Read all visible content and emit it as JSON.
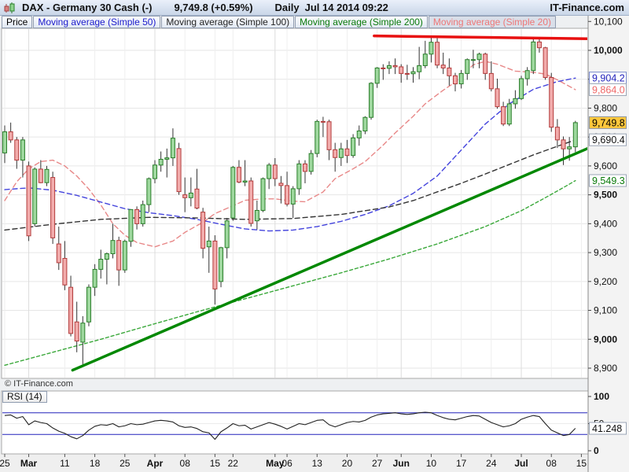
{
  "header": {
    "title": "DAX - Germany 30 Cash (-)",
    "last_price": "9,749.8 (+0.59%)",
    "timeframe": "Daily",
    "timestamp": "Jul 14 2014 09:22",
    "brand": "IT-Finance.com"
  },
  "tabs": [
    {
      "label": "Price",
      "text_color": "#000000",
      "selected": false
    },
    {
      "label": "Moving average (Simple 50)",
      "text_color": "#1a1acc",
      "selected": false
    },
    {
      "label": "Moving average (Simple 100)",
      "text_color": "#222222",
      "selected": false
    },
    {
      "label": "Moving average (Simple 200)",
      "text_color": "#0a7a0a",
      "selected": false
    },
    {
      "label": "Moving average (Simple 20)",
      "text_color": "#ee7777",
      "selected": true
    }
  ],
  "watermark": "© IT-Finance.com",
  "price_axis": {
    "min_tick": 8900,
    "max_tick": 10100,
    "step": 100,
    "bold_multiple": 500,
    "value_boxes": [
      {
        "name": "ma50-value-box",
        "value": "9,904.2",
        "price": 9904.2,
        "text_color": "#2222bb",
        "border_color": "#7788cc",
        "bg": "#ffffff"
      },
      {
        "name": "ma20-value-box",
        "value": "9,864.0",
        "price": 9864.0,
        "text_color": "#ee6666",
        "border_color": "#9aa5b5",
        "bg": "#ffffff"
      },
      {
        "name": "last-price-box",
        "value": "9,749.8",
        "price": 9749.8,
        "text_color": "#000000",
        "border_color": "#8a96a6",
        "bg": "#ffc83c"
      },
      {
        "name": "ma100-value-box",
        "value": "9,690.4",
        "price": 9690.4,
        "text_color": "#111111",
        "border_color": "#9aa5b5",
        "bg": "#ffffff"
      },
      {
        "name": "ma200-value-box",
        "value": "9,549.3",
        "price": 9549.3,
        "text_color": "#0a7a0a",
        "border_color": "#9aa5b5",
        "bg": "#ffffff"
      }
    ]
  },
  "x_axis": {
    "ticks": [
      {
        "label": "25",
        "i": 0,
        "bold": false
      },
      {
        "label": "Mar",
        "i": 4,
        "bold": true
      },
      {
        "label": "11",
        "i": 10,
        "bold": false
      },
      {
        "label": "18",
        "i": 15,
        "bold": false
      },
      {
        "label": "25",
        "i": 20,
        "bold": false
      },
      {
        "label": "Apr",
        "i": 25,
        "bold": true
      },
      {
        "label": "08",
        "i": 30,
        "bold": false
      },
      {
        "label": "15",
        "i": 35,
        "bold": false
      },
      {
        "label": "22",
        "i": 38,
        "bold": false
      },
      {
        "label": "May",
        "i": 45,
        "bold": true
      },
      {
        "label": "06",
        "i": 47,
        "bold": false
      },
      {
        "label": "13",
        "i": 52,
        "bold": false
      },
      {
        "label": "20",
        "i": 57,
        "bold": false
      },
      {
        "label": "27",
        "i": 62,
        "bold": false
      },
      {
        "label": "Jun",
        "i": 66,
        "bold": true
      },
      {
        "label": "10",
        "i": 71,
        "bold": false
      },
      {
        "label": "17",
        "i": 76,
        "bold": false
      },
      {
        "label": "24",
        "i": 81,
        "bold": false
      },
      {
        "label": "Jul",
        "i": 86,
        "bold": true
      },
      {
        "label": "08",
        "i": 91,
        "bold": false
      },
      {
        "label": "15",
        "i": 96,
        "bold": false
      }
    ]
  },
  "rsi": {
    "label": "RSI (14)",
    "value_box": {
      "value": "41.248",
      "level": 41.248,
      "text_color": "#111111",
      "border_color": "#9aa5b5",
      "bg": "#ffffff"
    },
    "levels": [
      30,
      70
    ],
    "axis_ticks": [
      {
        "label": "100",
        "v": 100,
        "bold": true
      },
      {
        "label": "50",
        "v": 50,
        "bold": false
      },
      {
        "label": "0",
        "v": 0,
        "bold": true
      }
    ],
    "ylim": [
      0,
      100
    ]
  },
  "chart_data": {
    "type": "candlestick",
    "title": "DAX - Germany 30 Cash, Daily, Feb 25 - Jul 14 2014",
    "ylim_visible": [
      8830,
      10080
    ],
    "grid": true,
    "colors": {
      "up_fill": "#9ed89e",
      "up_border": "#2a7e2a",
      "down_fill": "#f2acac",
      "down_border": "#b23a3a",
      "wick": "#333333",
      "grid": "#e6e6e6",
      "grid_month": "#dcdcdc",
      "rsi_line": "#222222",
      "rsi_level": "#2222bb"
    },
    "ohlc": [
      [
        9645,
        9740,
        9610,
        9718
      ],
      [
        9718,
        9750,
        9680,
        9690
      ],
      [
        9690,
        9700,
        9590,
        9620
      ],
      [
        9620,
        9700,
        9560,
        9690
      ],
      [
        9600,
        9615,
        9340,
        9358
      ],
      [
        9400,
        9595,
        9390,
        9589
      ],
      [
        9589,
        9620,
        9540,
        9542
      ],
      [
        9542,
        9600,
        9530,
        9588
      ],
      [
        9560,
        9580,
        9330,
        9351
      ],
      [
        9330,
        9390,
        9240,
        9265
      ],
      [
        9280,
        9340,
        9170,
        9188
      ],
      [
        9180,
        9220,
        9010,
        9020
      ],
      [
        9060,
        9130,
        8955,
        8994
      ],
      [
        8990,
        9080,
        8913,
        9056
      ],
      [
        9060,
        9190,
        9045,
        9180
      ],
      [
        9180,
        9260,
        9150,
        9242
      ],
      [
        9242,
        9310,
        9210,
        9277
      ],
      [
        9277,
        9300,
        9190,
        9296
      ],
      [
        9296,
        9400,
        9280,
        9342
      ],
      [
        9342,
        9355,
        9185,
        9240
      ],
      [
        9240,
        9345,
        9230,
        9339
      ],
      [
        9339,
        9450,
        9320,
        9449
      ],
      [
        9449,
        9460,
        9380,
        9400
      ],
      [
        9400,
        9480,
        9390,
        9466
      ],
      [
        9466,
        9560,
        9440,
        9556
      ],
      [
        9556,
        9620,
        9540,
        9603
      ],
      [
        9603,
        9650,
        9580,
        9623
      ],
      [
        9623,
        9660,
        9560,
        9628
      ],
      [
        9628,
        9730,
        9600,
        9696
      ],
      [
        9660,
        9680,
        9500,
        9511
      ],
      [
        9500,
        9560,
        9440,
        9490
      ],
      [
        9490,
        9560,
        9460,
        9506
      ],
      [
        9520,
        9590,
        9450,
        9454
      ],
      [
        9440,
        9455,
        9280,
        9315
      ],
      [
        9320,
        9390,
        9230,
        9340
      ],
      [
        9340,
        9360,
        9120,
        9174
      ],
      [
        9200,
        9320,
        9180,
        9317
      ],
      [
        9317,
        9420,
        9280,
        9410
      ],
      [
        9420,
        9600,
        9410,
        9595
      ],
      [
        9595,
        9620,
        9540,
        9544
      ],
      [
        9544,
        9620,
        9530,
        9548
      ],
      [
        9548,
        9560,
        9390,
        9401
      ],
      [
        9410,
        9480,
        9380,
        9446
      ],
      [
        9446,
        9560,
        9440,
        9556
      ],
      [
        9556,
        9610,
        9520,
        9603
      ],
      [
        9603,
        9627,
        9530,
        9556
      ],
      [
        9540,
        9565,
        9470,
        9532
      ],
      [
        9532,
        9580,
        9460,
        9468
      ],
      [
        9468,
        9530,
        9420,
        9521
      ],
      [
        9521,
        9620,
        9500,
        9607
      ],
      [
        9607,
        9620,
        9540,
        9581
      ],
      [
        9581,
        9655,
        9570,
        9643
      ],
      [
        9643,
        9760,
        9630,
        9754
      ],
      [
        9754,
        9770,
        9700,
        9753
      ],
      [
        9753,
        9760,
        9620,
        9656
      ],
      [
        9656,
        9680,
        9580,
        9629
      ],
      [
        9629,
        9680,
        9600,
        9659
      ],
      [
        9659,
        9690,
        9610,
        9636
      ],
      [
        9636,
        9710,
        9628,
        9697
      ],
      [
        9697,
        9740,
        9670,
        9721
      ],
      [
        9721,
        9772,
        9710,
        9768
      ],
      [
        9768,
        9890,
        9760,
        9886
      ],
      [
        9886,
        9942,
        9870,
        9939
      ],
      [
        9939,
        9952,
        9898,
        9938
      ],
      [
        9938,
        9962,
        9918,
        9947
      ],
      [
        9947,
        9972,
        9918,
        9943
      ],
      [
        9943,
        9952,
        9888,
        9920
      ],
      [
        9920,
        9950,
        9898,
        9919
      ],
      [
        9919,
        9942,
        9888,
        9926
      ],
      [
        9926,
        10012,
        9900,
        9947
      ],
      [
        9947,
        10033,
        9938,
        9987
      ],
      [
        9987,
        10051,
        9958,
        10028
      ],
      [
        10028,
        10042,
        9938,
        9949
      ],
      [
        9949,
        9992,
        9918,
        9939
      ],
      [
        9939,
        9972,
        9878,
        9912
      ],
      [
        9912,
        9922,
        9858,
        9884
      ],
      [
        9884,
        9932,
        9868,
        9920
      ],
      [
        9920,
        9972,
        9898,
        9968
      ],
      [
        9968,
        10002,
        9938,
        9968
      ],
      [
        9968,
        9992,
        9938,
        9987
      ],
      [
        9987,
        9992,
        9898,
        9920
      ],
      [
        9920,
        9962,
        9858,
        9867
      ],
      [
        9867,
        9902,
        9798,
        9805
      ],
      [
        9805,
        9822,
        9738,
        9745
      ],
      [
        9745,
        9832,
        9738,
        9815
      ],
      [
        9815,
        9862,
        9798,
        9833
      ],
      [
        9833,
        9912,
        9828,
        9902
      ],
      [
        9902,
        9942,
        9878,
        9930
      ],
      [
        9930,
        10046,
        9918,
        10029
      ],
      [
        10029,
        10038,
        9992,
        10009
      ],
      [
        10009,
        10012,
        9898,
        9906
      ],
      [
        9906,
        9922,
        9718,
        9734
      ],
      [
        9734,
        9762,
        9662,
        9690
      ],
      [
        9690,
        9702,
        9603,
        9659
      ],
      [
        9659,
        9700,
        9618,
        9666
      ],
      [
        9666,
        9756,
        9648,
        9749.8
      ]
    ],
    "overlays": [
      {
        "name": "ma20",
        "legend": "Moving average (Simple 20)",
        "color": "#e88888",
        "dash": "6,4",
        "width": 1.4,
        "points": [
          [
            0,
            9480
          ],
          [
            2,
            9545
          ],
          [
            4,
            9590
          ],
          [
            6,
            9615
          ],
          [
            8,
            9620
          ],
          [
            10,
            9600
          ],
          [
            12,
            9565
          ],
          [
            14,
            9520
          ],
          [
            16,
            9465
          ],
          [
            18,
            9400
          ],
          [
            20,
            9360
          ],
          [
            22,
            9335
          ],
          [
            25,
            9320
          ],
          [
            28,
            9340
          ],
          [
            30,
            9370
          ],
          [
            33,
            9405
          ],
          [
            35,
            9435
          ],
          [
            38,
            9462
          ],
          [
            40,
            9481
          ],
          [
            43,
            9486
          ],
          [
            45,
            9486
          ],
          [
            48,
            9478
          ],
          [
            50,
            9476
          ],
          [
            53,
            9510
          ],
          [
            55,
            9556
          ],
          [
            58,
            9590
          ],
          [
            60,
            9615
          ],
          [
            63,
            9672
          ],
          [
            65,
            9714
          ],
          [
            68,
            9772
          ],
          [
            70,
            9815
          ],
          [
            73,
            9862
          ],
          [
            75,
            9890
          ],
          [
            78,
            9950
          ],
          [
            80,
            9962
          ],
          [
            82,
            9952
          ],
          [
            85,
            9928
          ],
          [
            88,
            9924
          ],
          [
            90,
            9918
          ],
          [
            92,
            9898
          ],
          [
            95,
            9864
          ]
        ]
      },
      {
        "name": "ma50",
        "legend": "Moving average (Simple 50)",
        "color": "#4444dd",
        "dash": "6,4",
        "width": 1.4,
        "points": [
          [
            0,
            9518
          ],
          [
            4,
            9524
          ],
          [
            8,
            9516
          ],
          [
            12,
            9498
          ],
          [
            16,
            9475
          ],
          [
            20,
            9452
          ],
          [
            24,
            9438
          ],
          [
            28,
            9428
          ],
          [
            32,
            9415
          ],
          [
            36,
            9398
          ],
          [
            40,
            9382
          ],
          [
            44,
            9375
          ],
          [
            48,
            9378
          ],
          [
            52,
            9390
          ],
          [
            56,
            9408
          ],
          [
            60,
            9432
          ],
          [
            64,
            9462
          ],
          [
            68,
            9505
          ],
          [
            72,
            9565
          ],
          [
            76,
            9655
          ],
          [
            80,
            9745
          ],
          [
            84,
            9815
          ],
          [
            88,
            9865
          ],
          [
            92,
            9892
          ],
          [
            95,
            9904
          ]
        ]
      },
      {
        "name": "ma100",
        "legend": "Moving average (Simple 100)",
        "color": "#333333",
        "dash": "6,4",
        "width": 1.4,
        "points": [
          [
            0,
            9378
          ],
          [
            8,
            9398
          ],
          [
            16,
            9415
          ],
          [
            24,
            9422
          ],
          [
            32,
            9420
          ],
          [
            40,
            9415
          ],
          [
            48,
            9418
          ],
          [
            56,
            9432
          ],
          [
            64,
            9458
          ],
          [
            68,
            9480
          ],
          [
            72,
            9510
          ],
          [
            76,
            9540
          ],
          [
            80,
            9572
          ],
          [
            84,
            9605
          ],
          [
            88,
            9638
          ],
          [
            92,
            9668
          ],
          [
            95,
            9690
          ]
        ]
      },
      {
        "name": "ma200",
        "legend": "Moving average (Simple 200)",
        "color": "#3aa83a",
        "dash": "4,3",
        "width": 1.4,
        "points": [
          [
            0,
            8910
          ],
          [
            8,
            8955
          ],
          [
            16,
            9000
          ],
          [
            24,
            9048
          ],
          [
            32,
            9095
          ],
          [
            40,
            9140
          ],
          [
            48,
            9185
          ],
          [
            56,
            9230
          ],
          [
            64,
            9278
          ],
          [
            72,
            9330
          ],
          [
            80,
            9390
          ],
          [
            86,
            9445
          ],
          [
            90,
            9490
          ],
          [
            93,
            9525
          ],
          [
            95,
            9549
          ]
        ]
      },
      {
        "name": "support-trendline",
        "legend": "upward trendline",
        "color": "#008800",
        "dash": "",
        "width": 3.5,
        "points": [
          [
            11.3,
            8893
          ],
          [
            97,
            9660
          ]
        ]
      },
      {
        "name": "resistance-line",
        "legend": "horizontal resistance",
        "color": "#e81010",
        "dash": "",
        "width": 3.5,
        "points": [
          [
            61.5,
            10050
          ],
          [
            97,
            10040
          ]
        ]
      }
    ],
    "rsi_series": [
      65,
      66,
      60,
      63,
      48,
      55,
      52,
      50,
      42,
      36,
      32,
      26,
      22,
      28,
      38,
      45,
      48,
      47,
      50,
      44,
      46,
      50,
      48,
      49,
      52,
      55,
      56,
      55,
      53,
      46,
      43,
      44,
      41,
      35,
      33,
      21,
      35,
      42,
      50,
      46,
      47,
      40,
      44,
      48,
      52,
      49,
      45,
      40,
      45,
      50,
      48,
      52,
      56,
      57,
      48,
      44,
      48,
      52,
      54,
      53,
      56,
      62,
      66,
      68,
      69,
      70,
      68,
      67,
      68,
      70,
      71,
      70,
      65,
      61,
      58,
      57,
      60,
      63,
      65,
      64,
      58,
      52,
      48,
      44,
      46,
      50,
      58,
      62,
      65,
      63,
      50,
      38,
      33,
      28,
      30,
      41.248
    ]
  }
}
